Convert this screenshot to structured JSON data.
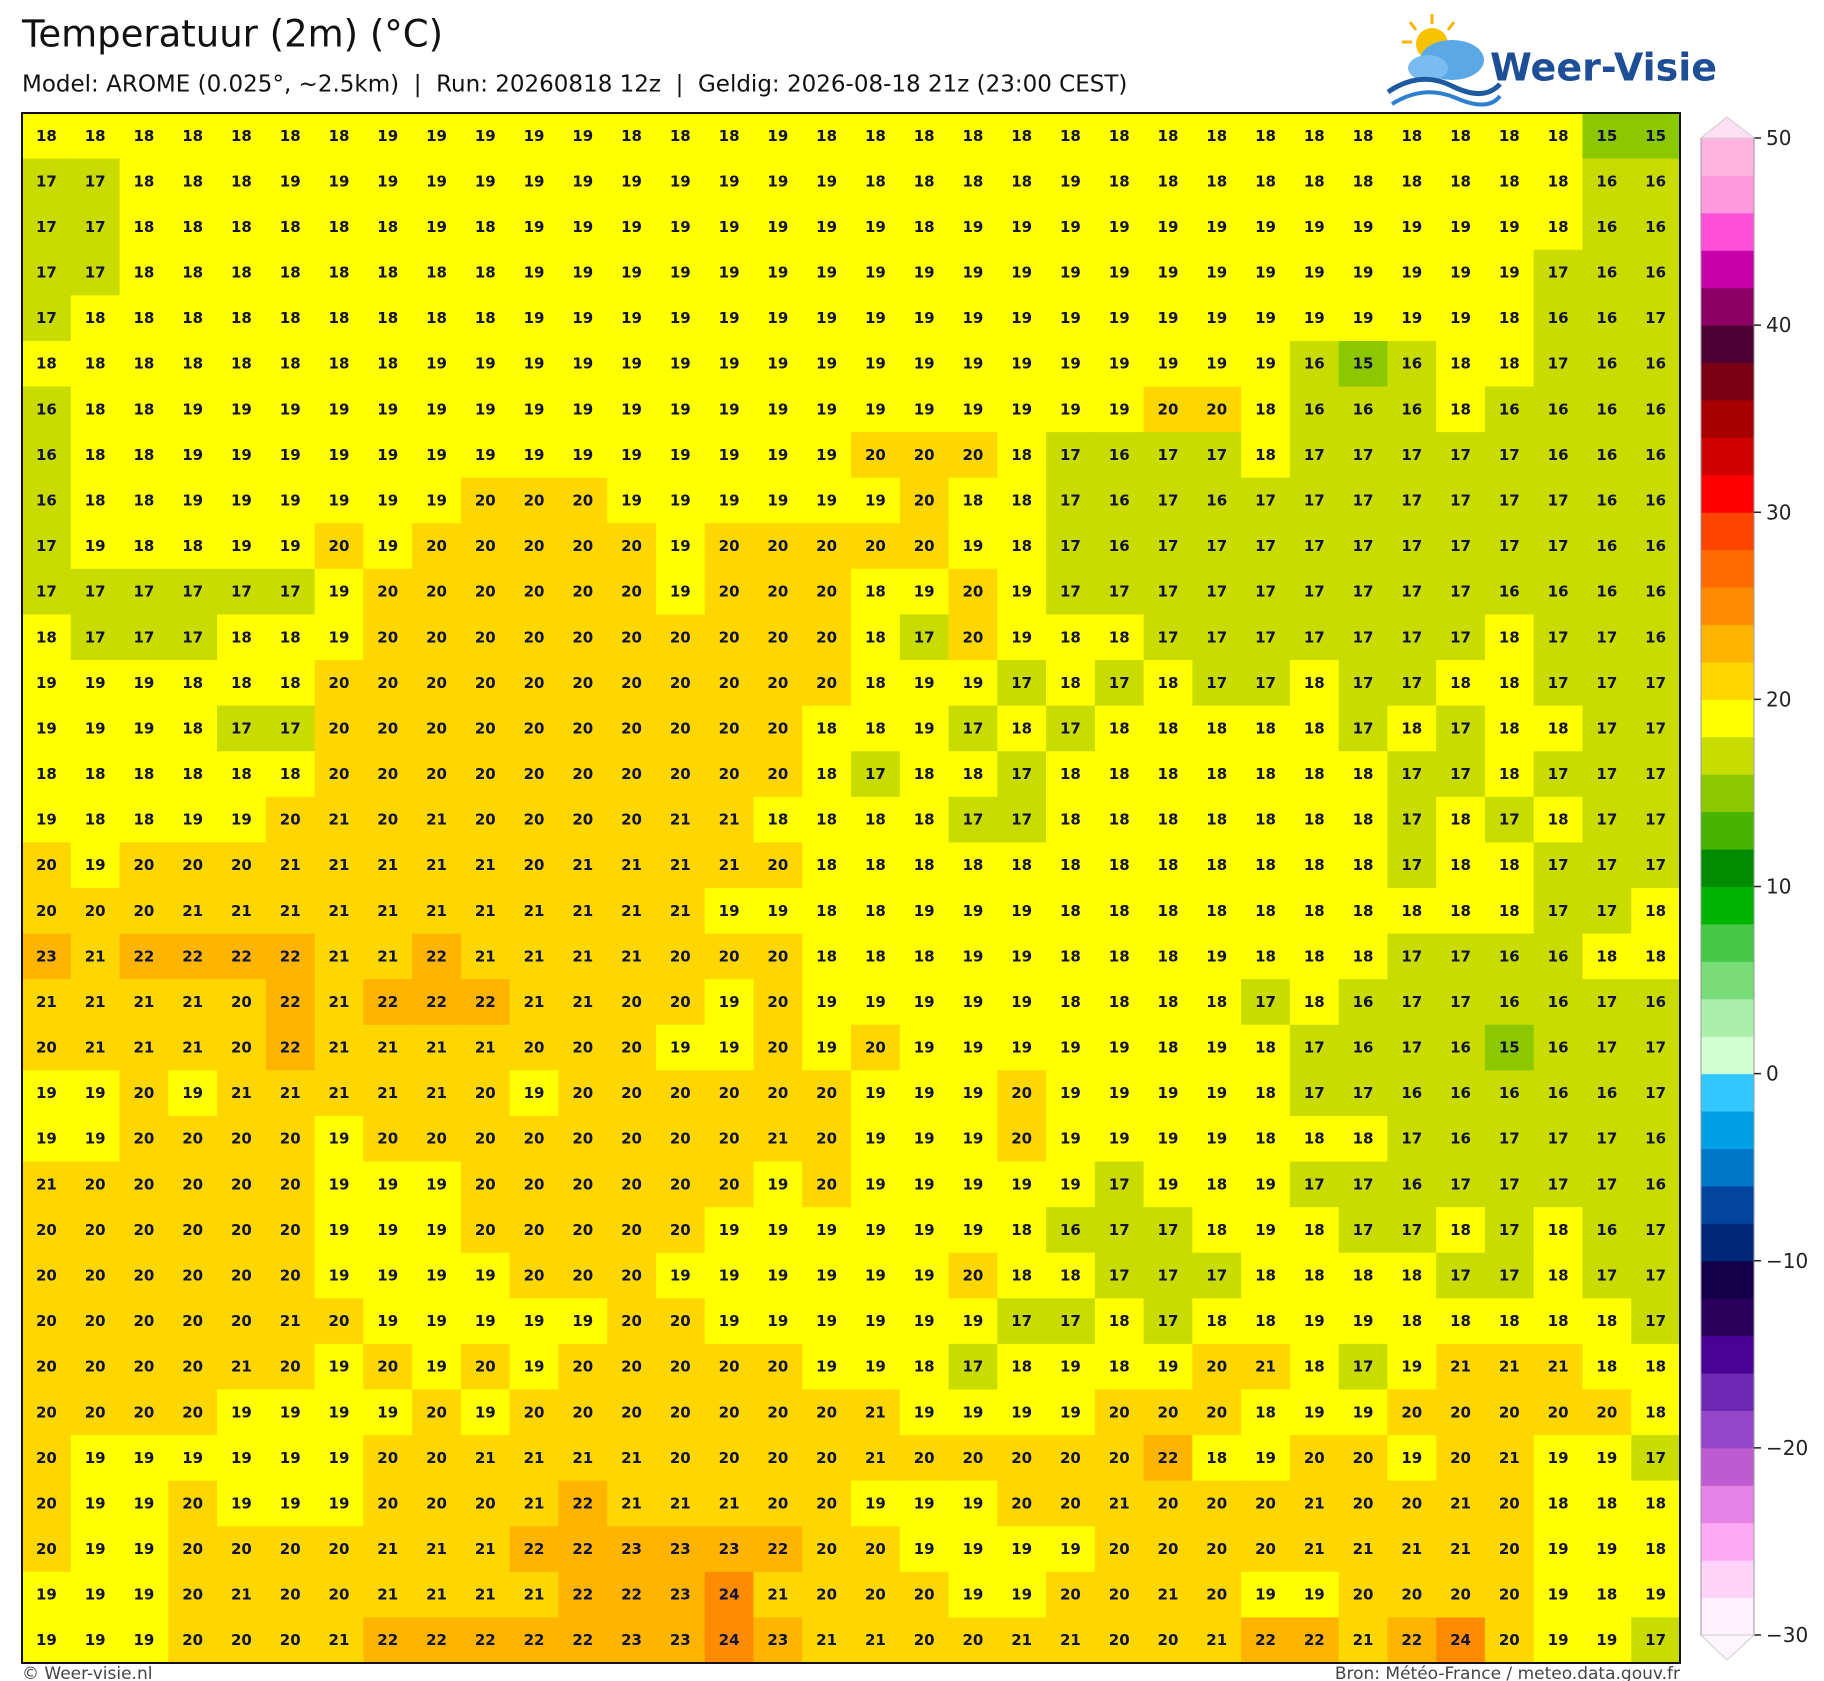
{
  "header": {
    "title": "Temperatuur (2m) (°C)",
    "subtitle": "Model: AROME (0.025°, ~2.5km)  |  Run: 20260818 12z  |  Geldig: 2026-08-18 21z (23:00 CEST)",
    "logo": "Weer-Visie"
  },
  "map": {
    "values": [
      [
        18,
        18,
        18,
        18,
        18,
        18,
        18,
        19,
        19,
        19,
        19,
        19,
        18,
        18,
        18,
        19,
        18,
        18,
        18,
        18,
        18,
        18,
        18,
        18,
        18,
        18,
        18,
        18,
        18,
        18,
        18,
        18,
        15,
        15
      ],
      [
        17,
        17,
        18,
        18,
        18,
        19,
        19,
        19,
        19,
        19,
        19,
        19,
        19,
        19,
        19,
        19,
        19,
        18,
        18,
        18,
        18,
        19,
        18,
        18,
        18,
        18,
        18,
        18,
        18,
        18,
        18,
        18,
        16,
        16
      ],
      [
        17,
        17,
        18,
        18,
        18,
        18,
        18,
        18,
        19,
        18,
        19,
        19,
        19,
        19,
        19,
        19,
        19,
        19,
        18,
        19,
        19,
        19,
        19,
        19,
        19,
        19,
        19,
        19,
        19,
        19,
        19,
        18,
        16,
        16
      ],
      [
        17,
        17,
        18,
        18,
        18,
        18,
        18,
        18,
        18,
        18,
        19,
        19,
        19,
        19,
        19,
        19,
        19,
        19,
        19,
        19,
        19,
        19,
        19,
        19,
        19,
        19,
        19,
        19,
        19,
        19,
        19,
        17,
        16,
        16
      ],
      [
        17,
        18,
        18,
        18,
        18,
        18,
        18,
        18,
        18,
        18,
        19,
        19,
        19,
        19,
        19,
        19,
        19,
        19,
        19,
        19,
        19,
        19,
        19,
        19,
        19,
        19,
        19,
        19,
        19,
        19,
        18,
        16,
        16,
        17
      ],
      [
        18,
        18,
        18,
        18,
        18,
        18,
        18,
        18,
        19,
        19,
        19,
        19,
        19,
        19,
        19,
        19,
        19,
        19,
        19,
        19,
        19,
        19,
        19,
        19,
        19,
        19,
        16,
        15,
        16,
        18,
        18,
        17,
        16,
        16
      ],
      [
        16,
        18,
        18,
        19,
        19,
        19,
        19,
        19,
        19,
        19,
        19,
        19,
        19,
        19,
        19,
        19,
        19,
        19,
        19,
        19,
        19,
        19,
        19,
        20,
        20,
        18,
        16,
        16,
        16,
        18,
        16,
        16,
        16,
        16
      ],
      [
        16,
        18,
        18,
        19,
        19,
        19,
        19,
        19,
        19,
        19,
        19,
        19,
        19,
        19,
        19,
        19,
        19,
        20,
        20,
        20,
        18,
        17,
        16,
        17,
        17,
        18,
        17,
        17,
        17,
        17,
        17,
        16,
        16,
        16
      ],
      [
        16,
        18,
        18,
        19,
        19,
        19,
        19,
        19,
        19,
        20,
        20,
        20,
        19,
        19,
        19,
        19,
        19,
        19,
        20,
        18,
        18,
        17,
        16,
        17,
        16,
        17,
        17,
        17,
        17,
        17,
        17,
        17,
        16,
        16
      ],
      [
        17,
        19,
        18,
        18,
        19,
        19,
        20,
        19,
        20,
        20,
        20,
        20,
        20,
        19,
        20,
        20,
        20,
        20,
        20,
        19,
        18,
        17,
        16,
        17,
        17,
        17,
        17,
        17,
        17,
        17,
        17,
        17,
        16,
        16
      ],
      [
        17,
        17,
        17,
        17,
        17,
        17,
        19,
        20,
        20,
        20,
        20,
        20,
        20,
        19,
        20,
        20,
        20,
        18,
        19,
        20,
        19,
        17,
        17,
        17,
        17,
        17,
        17,
        17,
        17,
        17,
        16,
        16,
        16,
        16
      ],
      [
        18,
        17,
        17,
        17,
        18,
        18,
        19,
        20,
        20,
        20,
        20,
        20,
        20,
        20,
        20,
        20,
        20,
        18,
        17,
        20,
        19,
        18,
        18,
        17,
        17,
        17,
        17,
        17,
        17,
        17,
        18,
        17,
        17,
        16
      ],
      [
        19,
        19,
        19,
        18,
        18,
        18,
        20,
        20,
        20,
        20,
        20,
        20,
        20,
        20,
        20,
        20,
        20,
        18,
        19,
        19,
        17,
        18,
        17,
        18,
        17,
        17,
        18,
        17,
        17,
        18,
        18,
        17,
        17,
        17
      ],
      [
        19,
        19,
        19,
        18,
        17,
        17,
        20,
        20,
        20,
        20,
        20,
        20,
        20,
        20,
        20,
        20,
        18,
        18,
        19,
        17,
        18,
        17,
        18,
        18,
        18,
        18,
        18,
        17,
        18,
        17,
        18,
        18,
        17,
        17
      ],
      [
        18,
        18,
        18,
        18,
        18,
        18,
        20,
        20,
        20,
        20,
        20,
        20,
        20,
        20,
        20,
        20,
        18,
        17,
        18,
        18,
        17,
        18,
        18,
        18,
        18,
        18,
        18,
        18,
        17,
        17,
        18,
        17,
        17,
        17
      ],
      [
        19,
        18,
        18,
        19,
        19,
        20,
        21,
        20,
        21,
        20,
        20,
        20,
        20,
        21,
        21,
        18,
        18,
        18,
        18,
        17,
        17,
        18,
        18,
        18,
        18,
        18,
        18,
        18,
        17,
        18,
        17,
        18,
        17,
        17
      ],
      [
        20,
        19,
        20,
        20,
        20,
        21,
        21,
        21,
        21,
        21,
        20,
        21,
        21,
        21,
        21,
        20,
        18,
        18,
        18,
        18,
        18,
        18,
        18,
        18,
        18,
        18,
        18,
        18,
        17,
        18,
        18,
        17,
        17,
        17
      ],
      [
        20,
        20,
        20,
        21,
        21,
        21,
        21,
        21,
        21,
        21,
        21,
        21,
        21,
        21,
        19,
        19,
        18,
        18,
        19,
        19,
        19,
        18,
        18,
        18,
        18,
        18,
        18,
        18,
        18,
        18,
        18,
        17,
        17,
        18
      ],
      [
        23,
        21,
        22,
        22,
        22,
        22,
        21,
        21,
        22,
        21,
        21,
        21,
        21,
        20,
        20,
        20,
        18,
        18,
        18,
        19,
        19,
        18,
        18,
        18,
        19,
        18,
        18,
        18,
        17,
        17,
        16,
        16,
        18,
        18
      ],
      [
        21,
        21,
        21,
        21,
        20,
        22,
        21,
        22,
        22,
        22,
        21,
        21,
        20,
        20,
        19,
        20,
        19,
        19,
        19,
        19,
        19,
        18,
        18,
        18,
        18,
        17,
        18,
        16,
        17,
        17,
        16,
        16,
        17,
        16
      ],
      [
        20,
        21,
        21,
        21,
        20,
        22,
        21,
        21,
        21,
        21,
        20,
        20,
        20,
        19,
        19,
        20,
        19,
        20,
        19,
        19,
        19,
        19,
        19,
        18,
        19,
        18,
        17,
        16,
        17,
        16,
        15,
        16,
        17,
        17
      ],
      [
        19,
        19,
        20,
        19,
        21,
        21,
        21,
        21,
        21,
        20,
        19,
        20,
        20,
        20,
        20,
        20,
        20,
        19,
        19,
        19,
        20,
        19,
        19,
        19,
        19,
        18,
        17,
        17,
        16,
        16,
        16,
        16,
        16,
        17
      ],
      [
        19,
        19,
        20,
        20,
        20,
        20,
        19,
        20,
        20,
        20,
        20,
        20,
        20,
        20,
        20,
        21,
        20,
        19,
        19,
        19,
        20,
        19,
        19,
        19,
        19,
        18,
        18,
        18,
        17,
        16,
        17,
        17,
        17,
        16
      ],
      [
        21,
        20,
        20,
        20,
        20,
        20,
        19,
        19,
        19,
        20,
        20,
        20,
        20,
        20,
        20,
        19,
        20,
        19,
        19,
        19,
        19,
        19,
        17,
        19,
        18,
        19,
        17,
        17,
        16,
        17,
        17,
        17,
        17,
        16
      ],
      [
        20,
        20,
        20,
        20,
        20,
        20,
        19,
        19,
        19,
        20,
        20,
        20,
        20,
        20,
        19,
        19,
        19,
        19,
        19,
        19,
        18,
        16,
        17,
        17,
        18,
        19,
        18,
        17,
        17,
        18,
        17,
        18,
        16,
        17
      ],
      [
        20,
        20,
        20,
        20,
        20,
        20,
        19,
        19,
        19,
        19,
        20,
        20,
        20,
        19,
        19,
        19,
        19,
        19,
        19,
        20,
        18,
        18,
        17,
        17,
        17,
        18,
        18,
        18,
        18,
        17,
        17,
        18,
        17,
        17
      ],
      [
        20,
        20,
        20,
        20,
        20,
        21,
        20,
        19,
        19,
        19,
        19,
        19,
        20,
        20,
        19,
        19,
        19,
        19,
        19,
        19,
        17,
        17,
        18,
        17,
        18,
        18,
        19,
        19,
        18,
        18,
        18,
        18,
        18,
        17
      ],
      [
        20,
        20,
        20,
        20,
        21,
        20,
        19,
        20,
        19,
        20,
        19,
        20,
        20,
        20,
        20,
        20,
        19,
        19,
        18,
        17,
        18,
        19,
        18,
        19,
        20,
        21,
        18,
        17,
        19,
        21,
        21,
        21,
        18,
        18
      ],
      [
        20,
        20,
        20,
        20,
        19,
        19,
        19,
        19,
        20,
        19,
        20,
        20,
        20,
        20,
        20,
        20,
        20,
        21,
        19,
        19,
        19,
        19,
        20,
        20,
        20,
        18,
        19,
        19,
        20,
        20,
        20,
        20,
        20,
        18
      ],
      [
        20,
        19,
        19,
        19,
        19,
        19,
        19,
        20,
        20,
        21,
        21,
        21,
        21,
        20,
        20,
        20,
        20,
        21,
        20,
        20,
        20,
        20,
        20,
        22,
        18,
        19,
        20,
        20,
        19,
        20,
        21,
        19,
        19,
        17
      ],
      [
        20,
        19,
        19,
        20,
        19,
        19,
        19,
        20,
        20,
        20,
        21,
        22,
        21,
        21,
        21,
        20,
        20,
        19,
        19,
        19,
        20,
        20,
        21,
        20,
        20,
        20,
        21,
        20,
        20,
        21,
        20,
        18,
        18,
        18
      ],
      [
        20,
        19,
        19,
        20,
        20,
        20,
        20,
        21,
        21,
        21,
        22,
        22,
        23,
        23,
        23,
        22,
        20,
        20,
        19,
        19,
        19,
        19,
        20,
        20,
        20,
        20,
        21,
        21,
        21,
        21,
        20,
        19,
        19,
        18
      ],
      [
        19,
        19,
        19,
        20,
        21,
        20,
        20,
        21,
        21,
        21,
        21,
        22,
        22,
        23,
        24,
        21,
        20,
        20,
        20,
        19,
        19,
        20,
        20,
        21,
        20,
        19,
        19,
        20,
        20,
        20,
        20,
        19,
        18,
        19
      ],
      [
        19,
        19,
        19,
        20,
        20,
        20,
        21,
        22,
        22,
        22,
        22,
        22,
        23,
        23,
        24,
        23,
        21,
        21,
        20,
        20,
        21,
        21,
        20,
        20,
        21,
        22,
        22,
        21,
        22,
        24,
        20,
        19,
        19,
        17
      ]
    ]
  },
  "colorbar": {
    "lim": [
      -30,
      50
    ],
    "colors": [
      "#fff0fd",
      "#ffd2fa",
      "#ffaaf5",
      "#e682e6",
      "#be5ad2",
      "#9646c8",
      "#6e28b4",
      "#4b0096",
      "#2a005a",
      "#14004a",
      "#002878",
      "#0046a0",
      "#0078c8",
      "#00a0e6",
      "#32c8ff",
      "#d2ffd2",
      "#aaf0aa",
      "#78dc78",
      "#46c846",
      "#00b400",
      "#008c00",
      "#46b400",
      "#8cc800",
      "#c8dc00",
      "#ffff00",
      "#ffd700",
      "#ffb400",
      "#ff8c00",
      "#ff6a00",
      "#ff4400",
      "#ff0000",
      "#d00000",
      "#a80000",
      "#7a0012",
      "#4c0033",
      "#8c0066",
      "#c800a8",
      "#ff4fd9",
      "#ff99dd",
      "#ffb3e0"
    ],
    "ticks": [
      50,
      40,
      30,
      20,
      10,
      0,
      {
        "value": -10,
        "label": "−10"
      },
      {
        "value": -20,
        "label": "−20"
      },
      {
        "value": -30,
        "label": "−30"
      }
    ]
  },
  "footer": {
    "left": "© Weer-visie.nl",
    "right": "Bron: Météo-France / meteo.data.gouv.fr"
  }
}
